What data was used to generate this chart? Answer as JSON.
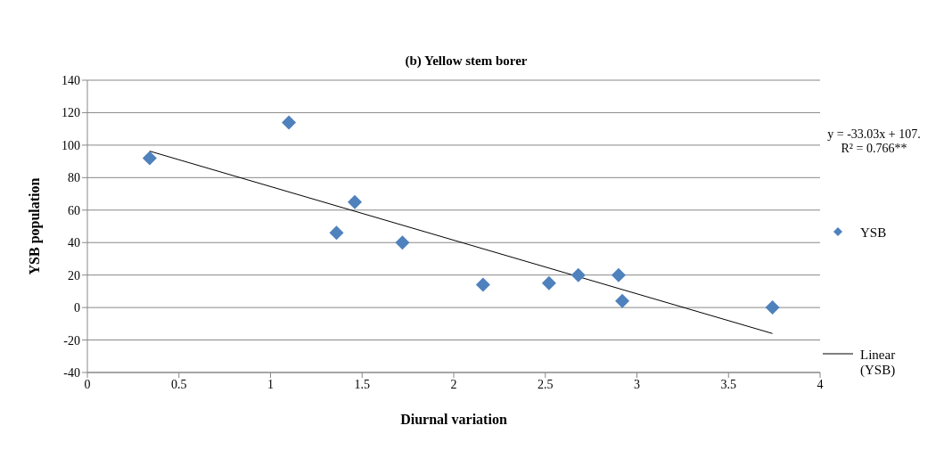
{
  "chart_data": {
    "type": "scatter",
    "title": "(b) Yellow stem borer",
    "xlabel": "Diurnal variation",
    "ylabel": "YSB population",
    "x": [
      0.34,
      1.1,
      1.36,
      1.46,
      1.72,
      2.16,
      2.52,
      2.68,
      2.9,
      2.92,
      3.74
    ],
    "series": [
      {
        "name": "YSB",
        "color": "#4f81bd",
        "marker": "diamond",
        "values": [
          92,
          114,
          46,
          65,
          40,
          14,
          15,
          20,
          20,
          4,
          0
        ]
      },
      {
        "name": "Linear (YSB)",
        "type": "line",
        "color": "#000000",
        "marker": "none",
        "x": [
          0.34,
          3.74
        ],
        "values": [
          96.3,
          -16.0
        ]
      }
    ],
    "xlim": [
      0,
      4
    ],
    "xticks": [
      0,
      0.5,
      1,
      1.5,
      2,
      2.5,
      3,
      3.5,
      4
    ],
    "ylim": [
      -40,
      140
    ],
    "yticks": [
      -40,
      -20,
      0,
      20,
      40,
      60,
      80,
      100,
      120,
      140
    ],
    "grid": "y",
    "legend": "right",
    "annotations": [
      "y = -33.03x + 107.",
      "R² = 0.766**"
    ]
  }
}
